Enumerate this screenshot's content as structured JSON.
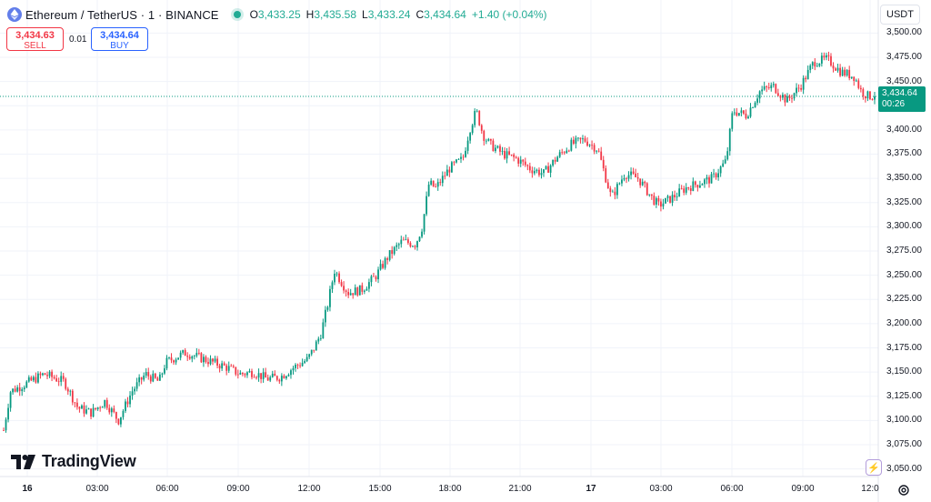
{
  "header": {
    "title": "Ethereum / TetherUS · 1 · BINANCE",
    "ohlc": [
      {
        "k": "O",
        "v": "3,433.25"
      },
      {
        "k": "H",
        "v": "3,435.58"
      },
      {
        "k": "L",
        "v": "3,433.24"
      },
      {
        "k": "C",
        "v": "3,434.64"
      },
      {
        "k": "",
        "v": "+1.40 (+0.04%)"
      }
    ]
  },
  "trade": {
    "sell_price": "3,434.63",
    "sell_label": "SELL",
    "buy_price": "3,434.64",
    "buy_label": "BUY",
    "spread": "0.01"
  },
  "currency": "USDT",
  "last_price": {
    "price": "3,434.64",
    "countdown": "00:26"
  },
  "brand": "TradingView",
  "colors": {
    "up": "#089981",
    "down": "#f23645",
    "grid": "#f0f3fa",
    "accent": "#2962ff"
  },
  "chart_data": {
    "type": "candlestick",
    "symbol": "Ethereum / TetherUS",
    "interval": "1",
    "exchange": "BINANCE",
    "y_ticks": [
      "3,500.00",
      "3,475.00",
      "3,450.00",
      "3,425.00",
      "3,400.00",
      "3,375.00",
      "3,350.00",
      "3,325.00",
      "3,300.00",
      "3,275.00",
      "3,250.00",
      "3,225.00",
      "3,200.00",
      "3,175.00",
      "3,150.00",
      "3,125.00",
      "3,100.00",
      "3,075.00",
      "3,050.00"
    ],
    "ylim": [
      3045,
      3505
    ],
    "x_ticks": [
      {
        "label": "16",
        "day": true
      },
      {
        "label": "03:00"
      },
      {
        "label": "06:00"
      },
      {
        "label": "09:00"
      },
      {
        "label": "12:00"
      },
      {
        "label": "15:00"
      },
      {
        "label": "18:00"
      },
      {
        "label": "21:00"
      },
      {
        "label": "17",
        "day": true
      },
      {
        "label": "03:00"
      },
      {
        "label": "06:00"
      },
      {
        "label": "09:00"
      },
      {
        "label": "12:0"
      }
    ],
    "last_close": 3434.64,
    "price_path": [
      [
        0,
        3090
      ],
      [
        1,
        3130
      ],
      [
        3,
        3137
      ],
      [
        6,
        3148
      ],
      [
        9,
        3140
      ],
      [
        11,
        3113
      ],
      [
        13,
        3108
      ],
      [
        15,
        3120
      ],
      [
        17,
        3100
      ],
      [
        19,
        3130
      ],
      [
        21,
        3148
      ],
      [
        23,
        3140
      ],
      [
        24,
        3160
      ],
      [
        26,
        3167
      ],
      [
        27,
        3170
      ],
      [
        29,
        3165
      ],
      [
        31,
        3160
      ],
      [
        33,
        3155
      ],
      [
        35,
        3148
      ],
      [
        37,
        3150
      ],
      [
        39,
        3143
      ],
      [
        41,
        3145
      ],
      [
        43,
        3155
      ],
      [
        45,
        3163
      ],
      [
        46,
        3175
      ],
      [
        47,
        3190
      ],
      [
        48,
        3220
      ],
      [
        49,
        3255
      ],
      [
        51,
        3232
      ],
      [
        53,
        3235
      ],
      [
        55,
        3248
      ],
      [
        57,
        3270
      ],
      [
        59,
        3285
      ],
      [
        61,
        3282
      ],
      [
        62,
        3300
      ],
      [
        63,
        3345
      ],
      [
        64,
        3340
      ],
      [
        66,
        3360
      ],
      [
        68,
        3370
      ],
      [
        69,
        3400
      ],
      [
        70,
        3420
      ],
      [
        71,
        3395
      ],
      [
        72,
        3385
      ],
      [
        74,
        3375
      ],
      [
        76,
        3370
      ],
      [
        78,
        3360
      ],
      [
        80,
        3355
      ],
      [
        82,
        3372
      ],
      [
        84,
        3385
      ],
      [
        86,
        3390
      ],
      [
        88,
        3380
      ],
      [
        89,
        3355
      ],
      [
        90,
        3330
      ],
      [
        92,
        3355
      ],
      [
        94,
        3350
      ],
      [
        96,
        3330
      ],
      [
        97,
        3322
      ],
      [
        99,
        3330
      ],
      [
        101,
        3340
      ],
      [
        103,
        3345
      ],
      [
        105,
        3350
      ],
      [
        107,
        3368
      ],
      [
        108,
        3420
      ],
      [
        110,
        3415
      ],
      [
        112,
        3440
      ],
      [
        114,
        3445
      ],
      [
        116,
        3430
      ],
      [
        118,
        3445
      ],
      [
        120,
        3470
      ],
      [
        122,
        3473
      ],
      [
        124,
        3460
      ],
      [
        126,
        3455
      ],
      [
        127,
        3440
      ],
      [
        128,
        3435
      ],
      [
        129,
        3434.64
      ]
    ]
  }
}
